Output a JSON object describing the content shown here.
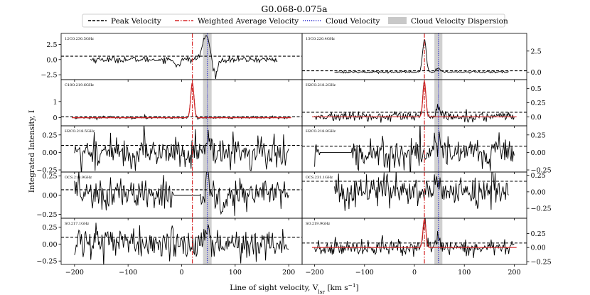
{
  "chart_data": {
    "type": "line",
    "title": "G0.068-0.075a",
    "xlabel": "Line of sight velocity, V$_{lsr}$ [km s$^{-1}$]",
    "xlabel_display": "Line of sight velocity, V",
    "xlabel_sub": "lsr",
    "xlabel_unit": " [km s",
    "xlabel_sup": "−1",
    "xlabel_close": "]",
    "ylabel": "Integrated Intensity, I",
    "xlim": [
      -225,
      225
    ],
    "xticks": [
      -200,
      -100,
      0,
      100,
      200
    ],
    "xtick_labels": [
      "−200",
      "−100",
      "0",
      "100",
      "200"
    ],
    "legend": {
      "placement": "top-center",
      "entries": [
        {
          "label": "Peak Velocity",
          "style": "dashed",
          "color": "#000000"
        },
        {
          "label": "Weighted Average Velocity",
          "style": "dashdot",
          "color": "#d62728"
        },
        {
          "label": "Cloud Velocity",
          "style": "dotted",
          "color": "#1f1fcc"
        },
        {
          "label": "Cloud Velocity Dispersion",
          "style": "patch",
          "color": "#c8c8c8"
        }
      ]
    },
    "weighted_average_velocity": 20,
    "cloud_velocity": 48,
    "cloud_velocity_dispersion": [
      40,
      56
    ],
    "panels": [
      {
        "label": "12CO.230.5GHz",
        "column": "left",
        "row": 0,
        "ylim": [
          -3.3,
          4.3
        ],
        "yticks": [
          2.5,
          0.0,
          -2.5
        ],
        "ytick_labels": [
          "2.5",
          "0.0",
          "−2.5"
        ],
        "peak_velocity_level": 0.55,
        "noise": 0.25,
        "signal": [
          {
            "v": 46,
            "amp": 3.9,
            "width": 7
          },
          {
            "v": 62,
            "amp": -2.6,
            "width": 5
          },
          {
            "v": -8,
            "amp": -0.9,
            "width": 5
          }
        ],
        "valid_range": [
          -170,
          180
        ],
        "has_fit": false
      },
      {
        "label": "13CO.220.4GHz",
        "column": "right",
        "row": 0,
        "ylim": [
          -0.9,
          4.6
        ],
        "yticks": [
          2.5,
          0.0
        ],
        "ytick_labels": [
          "2.5",
          "0.0"
        ],
        "peak_velocity_level": 0.15,
        "noise": 0.06,
        "signal": [
          {
            "v": 20,
            "amp": 3.9,
            "width": 3.5
          },
          {
            "v": 48,
            "amp": 0.5,
            "width": 4
          }
        ],
        "valid_range": [
          -160,
          190
        ],
        "has_fit": false
      },
      {
        "label": "C18O.219.6GHz",
        "column": "left",
        "row": 1,
        "ylim": [
          -0.5,
          2.35
        ],
        "yticks": [
          1.0,
          0.0
        ],
        "ytick_labels": [
          "1",
          "0"
        ],
        "peak_velocity_level": 0.06,
        "noise": 0.04,
        "signal": [
          {
            "v": 20,
            "amp": 2.15,
            "width": 3
          }
        ],
        "valid_range": [
          -200,
          200
        ],
        "has_fit": true
      },
      {
        "label": "H2CO.218.2GHz",
        "column": "right",
        "row": 1,
        "ylim": [
          -0.16,
          0.66
        ],
        "yticks": [
          0.5,
          0.25,
          0.0
        ],
        "ytick_labels": [
          "0.5",
          "0.25",
          "0.0"
        ],
        "peak_velocity_level": 0.08,
        "noise": 0.04,
        "signal": [
          {
            "v": 20,
            "amp": 0.62,
            "width": 3
          },
          {
            "v": 48,
            "amp": 0.15,
            "width": 4
          }
        ],
        "valid_range": [
          -200,
          200
        ],
        "has_fit": true
      },
      {
        "label": "H2CO.218.5GHz",
        "column": "left",
        "row": 2,
        "ylim": [
          -0.28,
          0.38
        ],
        "yticks": [
          0.25,
          0.0,
          -0.25
        ],
        "ytick_labels": [
          "0.25",
          "0.00",
          "−0.25"
        ],
        "peak_velocity_level": 0.1,
        "noise": 0.12,
        "signal": [
          {
            "v": 48,
            "amp": 0.18,
            "width": 4
          }
        ],
        "valid_range": [
          -200,
          200
        ],
        "has_fit": false
      },
      {
        "label": "H2CO.218.8GHz",
        "column": "right",
        "row": 2,
        "ylim": [
          -0.28,
          0.38
        ],
        "yticks": [
          0.25,
          0.0,
          -0.25
        ],
        "ytick_labels": [
          "0.25",
          "0.00",
          "−0.25"
        ],
        "peak_velocity_level": 0.09,
        "noise": 0.12,
        "signal": [
          {
            "v": 48,
            "amp": 0.15,
            "width": 4
          }
        ],
        "valid_range": [
          -200,
          200
        ],
        "flat_range": [
          -190,
          -125
        ],
        "has_fit": false
      },
      {
        "label": "OCS.218.9GHz",
        "column": "left",
        "row": 3,
        "ylim": [
          -0.3,
          0.3
        ],
        "yticks": [
          0.25,
          0.0,
          -0.25
        ],
        "ytick_labels": [
          "0.25",
          "0.00",
          "−0.25"
        ],
        "peak_velocity_level": 0.07,
        "noise": 0.11,
        "signal": [
          {
            "v": 48,
            "amp": 0.2,
            "width": 4
          }
        ],
        "valid_range": [
          -200,
          200
        ],
        "flat_range": [
          -15,
          35
        ],
        "has_fit": false
      },
      {
        "label": "OCS.231.1GHz",
        "column": "right",
        "row": 3,
        "ylim": [
          -0.4,
          0.3
        ],
        "yticks": [
          0.25,
          0.0,
          -0.25
        ],
        "ytick_labels": [
          "0.25",
          "0.00",
          "−0.25"
        ],
        "peak_velocity_level": 0.16,
        "noise": 0.12,
        "signal": [
          {
            "v": 48,
            "amp": 0.18,
            "width": 4
          }
        ],
        "valid_range": [
          -160,
          190
        ],
        "has_fit": false
      },
      {
        "label": "SO.217.1GHz",
        "column": "left",
        "row": 4,
        "ylim": [
          -0.3,
          0.38
        ],
        "yticks": [
          0.25,
          0.0,
          -0.25
        ],
        "ytick_labels": [
          "0.25",
          "0.00",
          "−0.25"
        ],
        "peak_velocity_level": 0.1,
        "noise": 0.1,
        "signal": [
          {
            "v": 48,
            "amp": 0.25,
            "width": 4
          },
          {
            "v": -160,
            "amp": 0.2,
            "width": 2
          }
        ],
        "valid_range": [
          -200,
          200
        ],
        "has_fit": false
      },
      {
        "label": "SO.219.9GHz",
        "column": "right",
        "row": 4,
        "ylim": [
          -0.3,
          0.52
        ],
        "yticks": [
          0.25,
          0.0,
          -0.25
        ],
        "ytick_labels": [
          "0.25",
          "0.00",
          "−0.25"
        ],
        "peak_velocity_level": 0.08,
        "noise": 0.07,
        "signal": [
          {
            "v": 20,
            "amp": 0.5,
            "width": 3
          },
          {
            "v": 48,
            "amp": 0.12,
            "width": 4
          }
        ],
        "valid_range": [
          -200,
          200
        ],
        "has_fit": true
      }
    ]
  }
}
